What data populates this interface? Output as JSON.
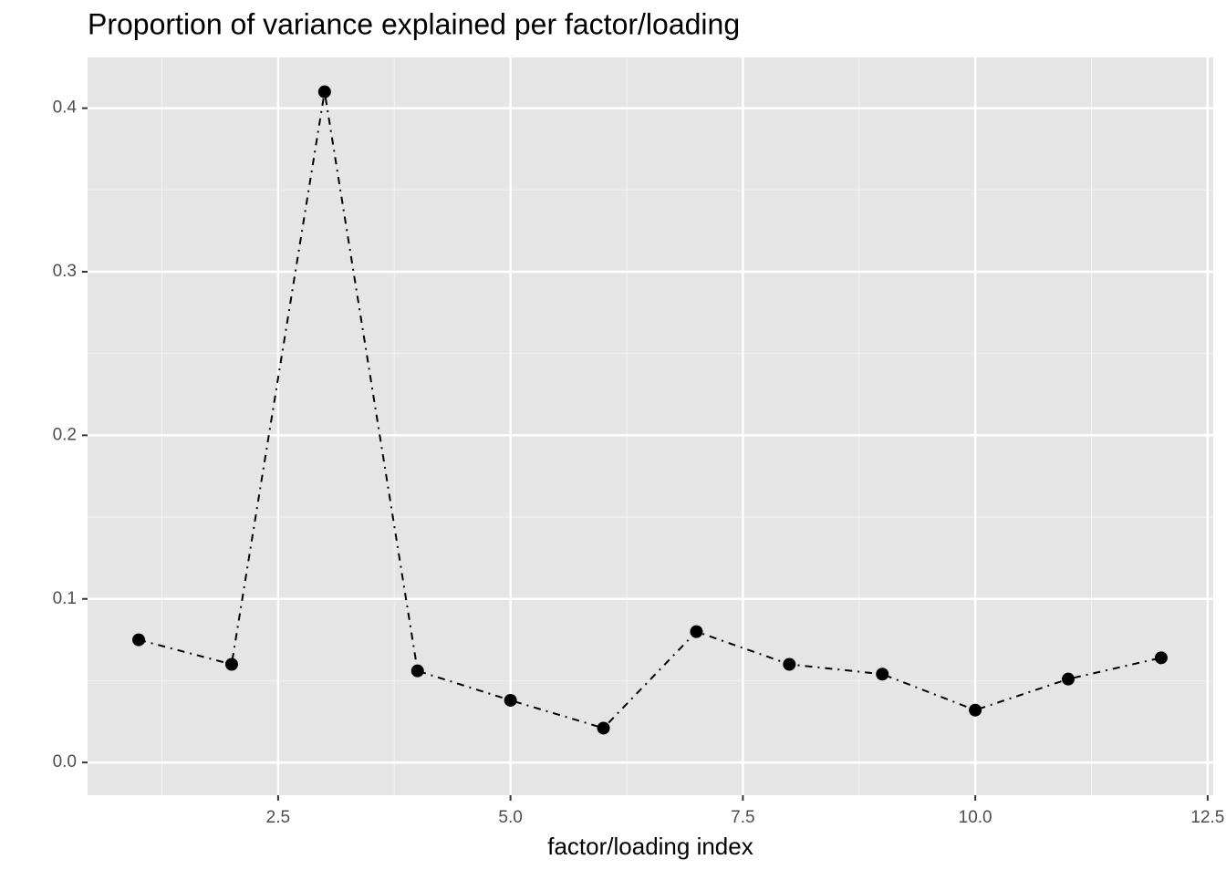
{
  "chart_data": {
    "type": "line",
    "title": "Proportion of variance explained per factor/loading",
    "x_label": "factor/loading index",
    "x": [
      1,
      2,
      3,
      4,
      5,
      6,
      7,
      8,
      9,
      10,
      11,
      12
    ],
    "values": [
      0.075,
      0.06,
      0.41,
      0.056,
      0.038,
      0.021,
      0.08,
      0.06,
      0.054,
      0.032,
      0.051,
      0.064
    ],
    "color": "#000000",
    "xlim": [
      0.45,
      12.56
    ],
    "ylim": [
      -0.02,
      0.431
    ],
    "xticks": [
      2.5,
      {
        "value": 5,
        "label": "5.0"
      },
      7.5,
      {
        "value": 10,
        "label": "10.0"
      },
      12.5
    ],
    "yticks": [
      {
        "value": 0,
        "label": "0.0"
      },
      0.1,
      0.2,
      0.3,
      0.4
    ],
    "grid": true
  }
}
